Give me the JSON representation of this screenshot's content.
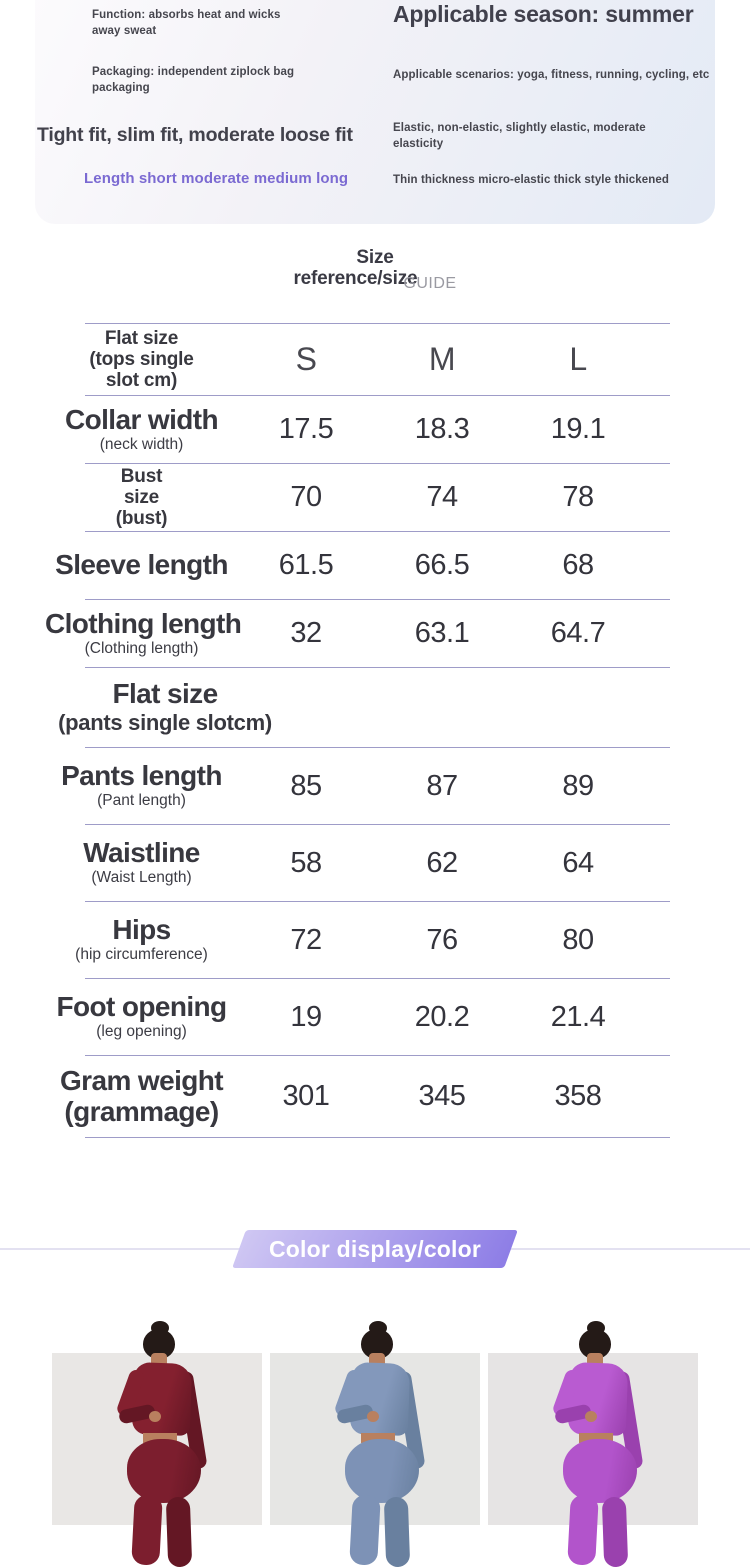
{
  "attributes_card": {
    "function_label": "Function: absorbs heat and wicks away sweat",
    "packaging_label": "Packaging: independent ziplock bag packaging",
    "fit_label": "Tight fit, slim fit, moderate loose fit",
    "length_label": "Length short moderate medium long",
    "season_label": "Applicable season: summer",
    "scenarios_label": "Applicable scenarios: yoga, fitness, running, cycling, etc",
    "elasticity_label": "Elastic, non-elastic, slightly elastic, moderate elasticity",
    "thickness_label": "Thin thickness micro-elastic thick style thickened",
    "accent_color": "#7b6ad2"
  },
  "size_guide": {
    "title_line1": "Size",
    "title_line2": "reference/size",
    "watermark": "GUIDE",
    "table": {
      "divider_color": "#9e9cc8",
      "size_columns": [
        "S",
        "M",
        "L"
      ],
      "rows": [
        {
          "kind": "header",
          "label_lines": [
            [
              "med",
              "Flat size"
            ],
            [
              "med",
              "(tops single"
            ],
            [
              "med",
              "slot cm)"
            ]
          ],
          "cells": [
            "S",
            "M",
            "L"
          ]
        },
        {
          "kind": "row",
          "label_lines": [
            [
              "big",
              "Collar width"
            ],
            [
              "sub",
              "(neck width)"
            ]
          ],
          "cells": [
            "17.5",
            "18.3",
            "19.1"
          ]
        },
        {
          "kind": "row",
          "label_lines": [
            [
              "med",
              "Bust"
            ],
            [
              "med",
              "size"
            ],
            [
              "med",
              "(bust)"
            ]
          ],
          "cells": [
            "70",
            "74",
            "78"
          ]
        },
        {
          "kind": "row",
          "label_lines": [
            [
              "big",
              "Sleeve length"
            ]
          ],
          "cells": [
            "61.5",
            "66.5",
            "68"
          ]
        },
        {
          "kind": "row",
          "label_lines": [
            [
              "big",
              "Clothing length"
            ],
            [
              "sub",
              "(Clothing length)"
            ]
          ],
          "cells": [
            "32",
            "63.1",
            "64.7"
          ]
        },
        {
          "kind": "section",
          "label_lines": [
            [
              "big",
              "Flat size"
            ],
            [
              "secsub",
              "(pants single slotcm)"
            ]
          ],
          "cells": []
        },
        {
          "kind": "rowt",
          "label_lines": [
            [
              "big",
              "Pants length"
            ],
            [
              "sub",
              "(Pant length)"
            ]
          ],
          "cells": [
            "85",
            "87",
            "89"
          ]
        },
        {
          "kind": "rowt",
          "label_lines": [
            [
              "big",
              "Waistline"
            ],
            [
              "sub",
              "(Waist Length)"
            ]
          ],
          "cells": [
            "58",
            "62",
            "64"
          ]
        },
        {
          "kind": "rowt",
          "label_lines": [
            [
              "big",
              "Hips"
            ],
            [
              "sub",
              "(hip circumference)"
            ]
          ],
          "cells": [
            "72",
            "76",
            "80"
          ]
        },
        {
          "kind": "rowt",
          "label_lines": [
            [
              "big",
              "Foot opening"
            ],
            [
              "sub",
              "(leg opening)"
            ]
          ],
          "cells": [
            "19",
            "20.2",
            "21.4"
          ]
        },
        {
          "kind": "rowg",
          "label_lines": [
            [
              "big",
              "Gram weight"
            ],
            [
              "big",
              "(grammage)"
            ]
          ],
          "cells": [
            "301",
            "345",
            "358"
          ]
        }
      ]
    }
  },
  "color_section": {
    "banner_label": "Color display/color",
    "banner_gradient_left": "#cfc7f3",
    "banner_gradient_right": "#8d7de6",
    "divider_line_color": "#e3e1f1",
    "model_skin": "#b9805f",
    "model_hair": "#241a17",
    "products": [
      {
        "top_color": "#84202f",
        "pants_color": "#7c1e2e",
        "shade_color": "#641724",
        "photo_bg": "#e9e7e5"
      },
      {
        "top_color": "#8398bb",
        "pants_color": "#7d92b6",
        "shade_color": "#69809f",
        "photo_bg": "#e6e6e4"
      },
      {
        "top_color": "#b95bd1",
        "pants_color": "#b254cb",
        "shade_color": "#9a41ae",
        "photo_bg": "#e6e4e4"
      }
    ]
  }
}
